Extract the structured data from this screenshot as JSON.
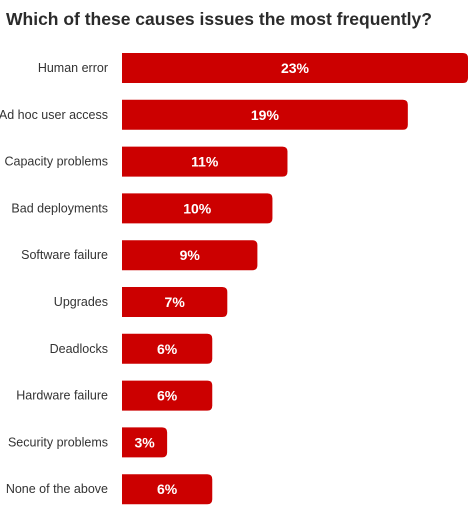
{
  "chart_data": {
    "type": "bar",
    "orientation": "horizontal",
    "title": "Which of these causes issues the most frequently?",
    "categories": [
      "Human error",
      "Ad hoc user access",
      "Capacity problems",
      "Bad deployments",
      "Software failure",
      "Upgrades",
      "Deadlocks",
      "Hardware failure",
      "Security problems",
      "None of the above"
    ],
    "values": [
      23,
      19,
      11,
      10,
      9,
      7,
      6,
      6,
      3,
      6
    ],
    "value_labels": [
      "23%",
      "19%",
      "11%",
      "10%",
      "9%",
      "7%",
      "6%",
      "6%",
      "3%",
      "6%"
    ],
    "unit": "%",
    "bar_color": "#cc0000",
    "label_color": "#ffffff",
    "grid": false,
    "legend": "none",
    "xlim": [
      0,
      23
    ]
  }
}
